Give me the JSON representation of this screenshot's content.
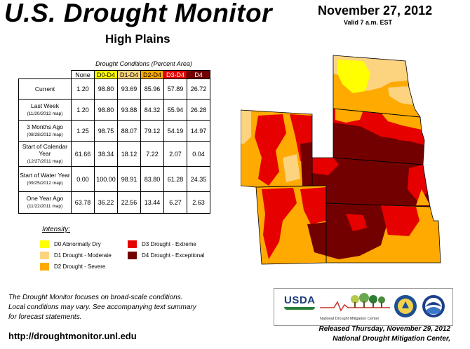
{
  "header": {
    "title": "U.S. Drought Monitor",
    "region": "High Plains",
    "date": "November 27, 2012",
    "valid": "Valid 7 a.m. EST"
  },
  "table": {
    "caption": "Drought Conditions (Percent Area)",
    "columns": [
      "None",
      "D0-D4",
      "D1-D4",
      "D2-D4",
      "D3-D4",
      "D4"
    ],
    "column_colors": [
      "#ffffff",
      "#ffff00",
      "#fcd37f",
      "#ffaa00",
      "#e60000",
      "#730000"
    ],
    "rows": [
      {
        "label": "Current",
        "sub": "",
        "values": [
          "1.20",
          "98.80",
          "93.69",
          "85.96",
          "57.89",
          "26.72"
        ]
      },
      {
        "label": "Last Week",
        "sub": "(11/20/2012 map)",
        "values": [
          "1.20",
          "98.80",
          "93.88",
          "84.32",
          "55.94",
          "26.28"
        ]
      },
      {
        "label": "3 Months Ago",
        "sub": "(08/28/2012 map)",
        "values": [
          "1.25",
          "98.75",
          "88.07",
          "79.12",
          "54.19",
          "14.97"
        ]
      },
      {
        "label": "Start of Calendar Year",
        "sub": "(12/27/2011 map)",
        "values": [
          "61.66",
          "38.34",
          "18.12",
          "7.22",
          "2.07",
          "0.04"
        ]
      },
      {
        "label": "Start of Water Year",
        "sub": "(09/25/2012 map)",
        "values": [
          "0.00",
          "100.00",
          "98.91",
          "83.80",
          "61.28",
          "24.35"
        ]
      },
      {
        "label": "One Year Ago",
        "sub": "(11/22/2011 map)",
        "values": [
          "63.78",
          "36.22",
          "22.56",
          "13.44",
          "6.27",
          "2.63"
        ]
      }
    ]
  },
  "legend": {
    "title": "Intensity:",
    "items": [
      {
        "label": "D0 Abnormally Dry",
        "color": "#ffff00"
      },
      {
        "label": "D1 Drought - Moderate",
        "color": "#fcd37f"
      },
      {
        "label": "D2 Drought - Severe",
        "color": "#ffaa00"
      },
      {
        "label": "D3 Drought - Extreme",
        "color": "#e60000"
      },
      {
        "label": "D4 Drought - Exceptional",
        "color": "#730000"
      }
    ]
  },
  "footer": {
    "focus_line1": "The Drought Monitor focuses on broad-scale conditions.",
    "focus_line2": "Local conditions may vary. See accompanying text summary",
    "focus_line3": "for forecast statements.",
    "url": "http://droughtmonitor.unl.edu",
    "released_line1": "Released Thursday, November 29, 2012",
    "released_line2": "National Drought Mitigation Center,"
  },
  "logos": {
    "usda": "USDA",
    "ndmc": "National Drought Mitigation Center",
    "doc_icon": "department-of-commerce-seal",
    "noaa_icon": "noaa-logo"
  }
}
